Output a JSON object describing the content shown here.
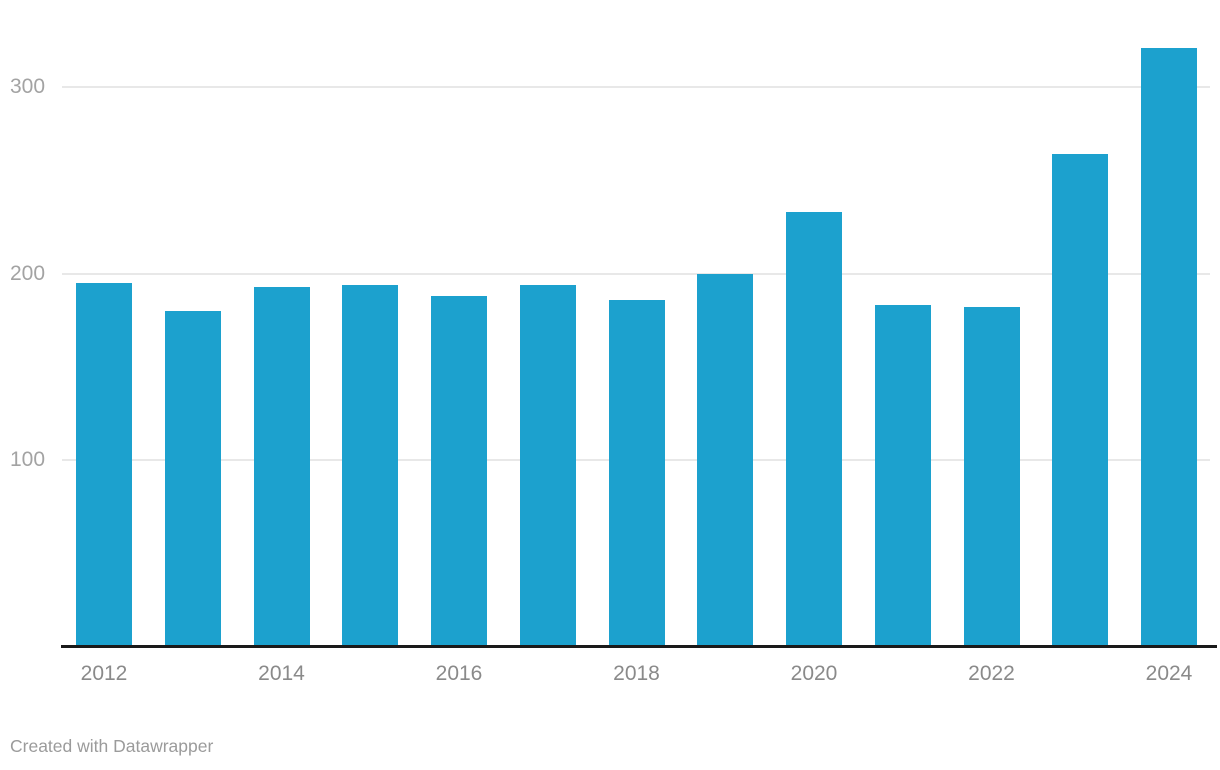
{
  "chart_data": {
    "type": "bar",
    "categories": [
      "2012",
      "2013",
      "2014",
      "2015",
      "2016",
      "2017",
      "2018",
      "2019",
      "2020",
      "2021",
      "2022",
      "2023",
      "2024"
    ],
    "values": [
      195,
      180,
      193,
      194,
      188,
      194,
      186,
      200,
      233,
      183,
      182,
      264,
      321
    ],
    "title": "",
    "xlabel": "",
    "ylabel": "",
    "ylim": [
      0,
      340
    ],
    "y_ticks": [
      100,
      200,
      300
    ],
    "x_tick_labels": [
      "2012",
      "2014",
      "2016",
      "2018",
      "2020",
      "2022",
      "2024"
    ],
    "x_tick_every": 2,
    "grid": "horizontal",
    "legend": "none",
    "bar_color": "#1CA1CE"
  },
  "colors": {
    "bar": "#1CA1CE",
    "axis_line": "#1a1a1a",
    "gridline": "#e8e8e8",
    "y_tick_label": "#a3a3a3",
    "x_tick_label": "#8a8a8a",
    "footer_text": "#9b9b9b"
  },
  "footer": {
    "attribution": "Created with Datawrapper"
  }
}
